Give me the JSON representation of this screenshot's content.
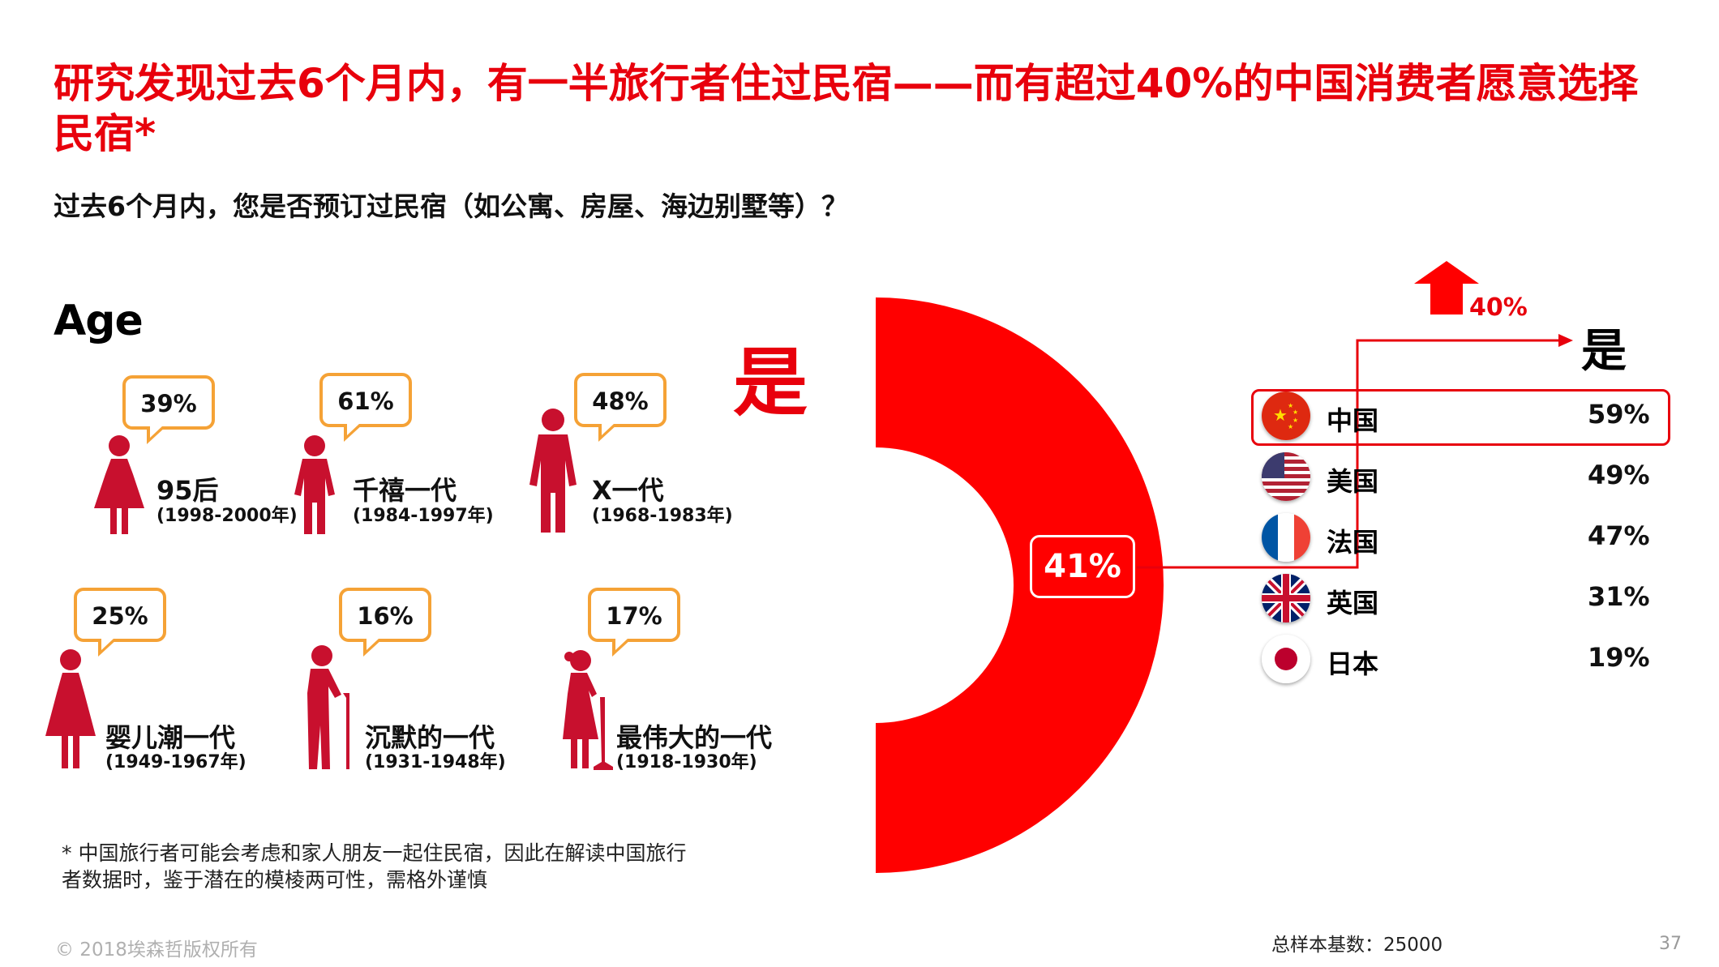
{
  "title": "研究发现过去6个月内，有一半旅行者住过民宿——而有超过40%的中国消费者愿意选择民宿*",
  "subtitle": "过去6个月内，您是否预订过民宿（如公寓、房屋、海边别墅等）？",
  "age_heading": "Age",
  "generations": [
    {
      "pct": "39%",
      "name": "95后",
      "years": "(1998-2000年)"
    },
    {
      "pct": "61%",
      "name": "千禧一代",
      "years": "(1984-1997年)"
    },
    {
      "pct": "48%",
      "name": "X一代",
      "years": "(1968-1983年)"
    },
    {
      "pct": "25%",
      "name": "婴儿潮一代",
      "years": "(1949-1967年)"
    },
    {
      "pct": "16%",
      "name": "沉默的一代",
      "years": "(1931-1948年)"
    },
    {
      "pct": "17%",
      "name": "最伟大的一代",
      "years": "(1918-1930年)"
    }
  ],
  "big_yes_label": "是",
  "total_yes": "41%",
  "increase_label": "40%",
  "right_yes_label": "是",
  "countries": [
    {
      "name": "中国",
      "value": "59%",
      "flag": "china-flag",
      "highlight": true
    },
    {
      "name": "美国",
      "value": "49%",
      "flag": "usa-flag",
      "highlight": false
    },
    {
      "name": "法国",
      "value": "47%",
      "flag": "france-flag",
      "highlight": false
    },
    {
      "name": "英国",
      "value": "31%",
      "flag": "uk-flag",
      "highlight": false
    },
    {
      "name": "日本",
      "value": "19%",
      "flag": "japan-flag",
      "highlight": false
    }
  ],
  "footnote": "* 中国旅行者可能会考虑和家人朋友一起住民宿，因此在解读中国旅行者数据时，鉴于潜在的模棱两可性，需格外谨慎",
  "copyright": "© 2018埃森哲版权所有",
  "sample": "总样本基数：25000",
  "page_number": "37",
  "colors": {
    "accent": "#e8000c",
    "bubble_border": "#f5a236",
    "figure": "#c8102e"
  },
  "chart_data": [
    {
      "type": "pie",
      "title": "",
      "categories": [
        "是"
      ],
      "values": [
        41
      ]
    },
    {
      "type": "bar",
      "title": "",
      "categories": [
        "95后",
        "千禧一代",
        "X一代",
        "婴儿潮一代",
        "沉默的一代",
        "最伟大的一代"
      ],
      "values": [
        39,
        61,
        48,
        25,
        16,
        17
      ]
    },
    {
      "type": "bar",
      "title": "",
      "categories": [
        "中国",
        "美国",
        "法国",
        "英国",
        "日本"
      ],
      "values": [
        59,
        49,
        47,
        31,
        19
      ]
    }
  ]
}
